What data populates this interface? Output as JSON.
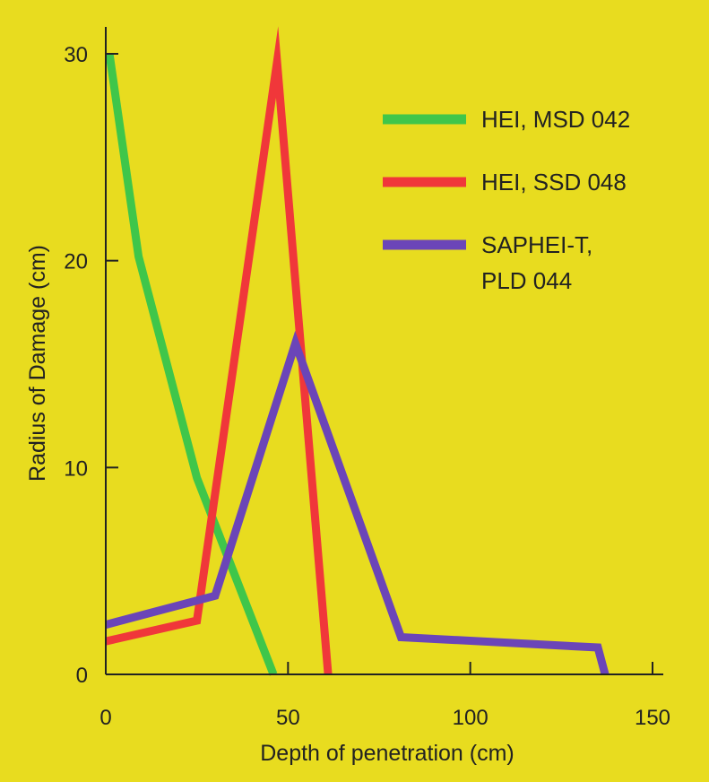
{
  "chart_data": {
    "type": "line",
    "xlabel": "Depth of penetration (cm)",
    "ylabel": "Radius of Damage (cm)",
    "xlim": [
      0,
      150
    ],
    "ylim": [
      0,
      30
    ],
    "xticks": [
      "0",
      "50",
      "100",
      "150"
    ],
    "yticks": [
      "0",
      "10",
      "20",
      "30"
    ],
    "grid": false,
    "legend_position": "top-right",
    "background_color": "#e8dc1f",
    "series": [
      {
        "name": "HEI, MSD 042",
        "color": "#3fc64a",
        "points": [
          [
            1,
            30
          ],
          [
            9,
            20.2
          ],
          [
            25,
            9.5
          ],
          [
            46,
            0
          ]
        ]
      },
      {
        "name": "HEI, SSD 048",
        "color": "#f0373a",
        "points": [
          [
            0,
            1.6
          ],
          [
            25,
            2.6
          ],
          [
            47,
            29.6
          ],
          [
            61,
            0
          ]
        ]
      },
      {
        "name": "SAPHEI-T, PLD 044",
        "color": "#6b45b8",
        "points": [
          [
            0,
            2.4
          ],
          [
            30,
            3.8
          ],
          [
            52,
            16
          ],
          [
            81,
            1.8
          ],
          [
            135,
            1.3
          ],
          [
            137,
            0
          ]
        ]
      }
    ],
    "legend": {
      "items": [
        {
          "lines": [
            "HEI, MSD 042"
          ]
        },
        {
          "lines": [
            "HEI, SSD 048"
          ]
        },
        {
          "lines": [
            "SAPHEI-T,",
            "PLD 044"
          ]
        }
      ]
    }
  }
}
